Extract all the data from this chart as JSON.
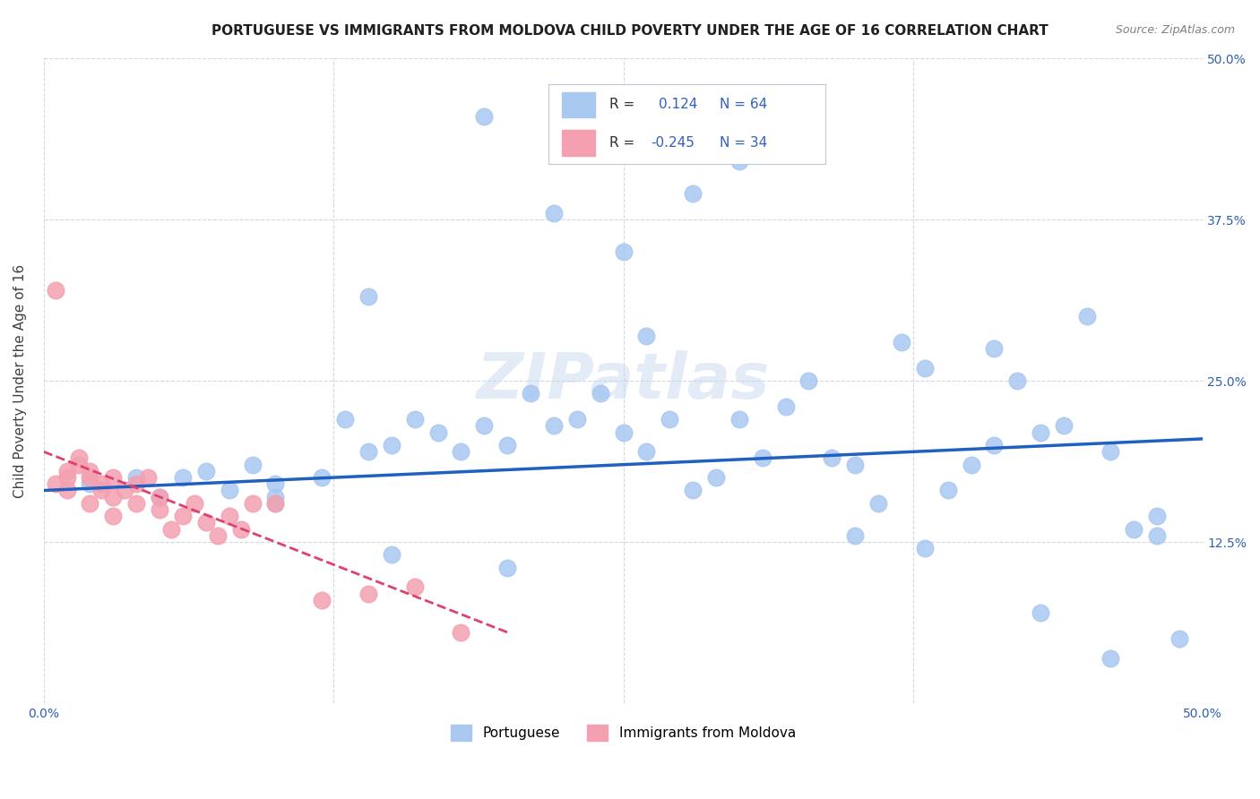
{
  "title": "PORTUGUESE VS IMMIGRANTS FROM MOLDOVA CHILD POVERTY UNDER THE AGE OF 16 CORRELATION CHART",
  "source": "Source: ZipAtlas.com",
  "xlabel_bottom": "",
  "ylabel": "Child Poverty Under the Age of 16",
  "xlim": [
    0,
    0.5
  ],
  "ylim": [
    0,
    0.5
  ],
  "xticks": [
    0.0,
    0.125,
    0.25,
    0.375,
    0.5
  ],
  "xtick_labels": [
    "0.0%",
    "",
    "",
    "",
    "50.0%"
  ],
  "ytick_labels_right": [
    "50.0%",
    "37.5%",
    "25.0%",
    "12.5%",
    ""
  ],
  "yticks_right": [
    0.5,
    0.375,
    0.25,
    0.125,
    0.0
  ],
  "legend_r1": "R =   0.124   N = 64",
  "legend_r2": "R = -0.245   N = 34",
  "blue_color": "#a8c8f0",
  "pink_color": "#f4a0b0",
  "blue_line_color": "#2060c0",
  "pink_line_color": "#e04070",
  "watermark": "ZIPatlas",
  "portuguese_x": [
    0.02,
    0.04,
    0.05,
    0.06,
    0.07,
    0.08,
    0.09,
    0.1,
    0.1,
    0.12,
    0.13,
    0.14,
    0.15,
    0.16,
    0.17,
    0.18,
    0.19,
    0.2,
    0.21,
    0.22,
    0.23,
    0.24,
    0.25,
    0.26,
    0.27,
    0.28,
    0.29,
    0.3,
    0.31,
    0.32,
    0.33,
    0.34,
    0.35,
    0.36,
    0.37,
    0.38,
    0.39,
    0.4,
    0.41,
    0.42,
    0.43,
    0.44,
    0.45,
    0.46,
    0.47,
    0.48,
    0.49,
    0.14,
    0.19,
    0.22,
    0.25,
    0.26,
    0.28,
    0.3,
    0.32,
    0.35,
    0.38,
    0.41,
    0.43,
    0.46,
    0.48,
    0.1,
    0.15,
    0.2
  ],
  "portuguese_y": [
    0.17,
    0.175,
    0.16,
    0.175,
    0.18,
    0.165,
    0.185,
    0.16,
    0.17,
    0.175,
    0.22,
    0.195,
    0.2,
    0.22,
    0.21,
    0.195,
    0.215,
    0.2,
    0.24,
    0.215,
    0.22,
    0.24,
    0.21,
    0.195,
    0.22,
    0.165,
    0.175,
    0.22,
    0.19,
    0.23,
    0.25,
    0.19,
    0.185,
    0.155,
    0.28,
    0.26,
    0.165,
    0.185,
    0.275,
    0.25,
    0.21,
    0.215,
    0.3,
    0.195,
    0.135,
    0.145,
    0.05,
    0.315,
    0.455,
    0.38,
    0.35,
    0.285,
    0.395,
    0.42,
    0.45,
    0.13,
    0.12,
    0.2,
    0.07,
    0.035,
    0.13,
    0.155,
    0.115,
    0.105
  ],
  "moldova_x": [
    0.005,
    0.01,
    0.01,
    0.015,
    0.015,
    0.02,
    0.02,
    0.025,
    0.025,
    0.03,
    0.03,
    0.035,
    0.04,
    0.04,
    0.045,
    0.05,
    0.05,
    0.055,
    0.06,
    0.065,
    0.07,
    0.075,
    0.08,
    0.085,
    0.09,
    0.1,
    0.12,
    0.14,
    0.16,
    0.18,
    0.005,
    0.01,
    0.02,
    0.03
  ],
  "moldova_y": [
    0.32,
    0.18,
    0.175,
    0.19,
    0.185,
    0.18,
    0.175,
    0.17,
    0.165,
    0.175,
    0.16,
    0.165,
    0.17,
    0.155,
    0.175,
    0.16,
    0.15,
    0.135,
    0.145,
    0.155,
    0.14,
    0.13,
    0.145,
    0.135,
    0.155,
    0.155,
    0.08,
    0.085,
    0.09,
    0.055,
    0.17,
    0.165,
    0.155,
    0.145
  ],
  "blue_regression": [
    0.0,
    0.5,
    0.165,
    0.205
  ],
  "pink_regression": [
    0.0,
    0.2,
    0.195,
    0.055
  ],
  "marker_size": 180,
  "title_fontsize": 11,
  "axis_fontsize": 10,
  "legend_fontsize": 12
}
